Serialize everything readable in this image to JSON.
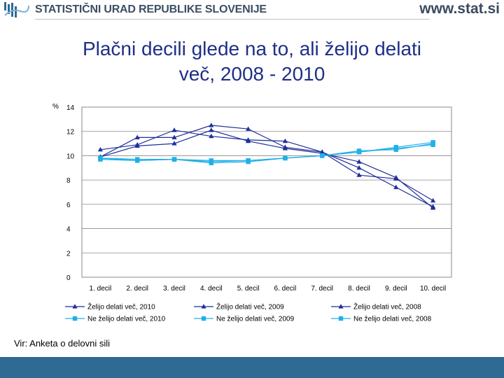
{
  "header": {
    "org_name": "STATISTIČNI URAD REPUBLIKE SLOVENIJE",
    "url": "www.stat.si"
  },
  "slide": {
    "title_line1": "Plačni decili glede na to, ali želijo delati",
    "title_line2": "več, 2008 - 2010",
    "source": "Vir: Anketa o delovni sili"
  },
  "colors": {
    "title": "#1f2f86",
    "footer": "#2f6a93",
    "dark_series": "#1f2f9a",
    "light_series": "#20b0e8"
  },
  "chart_data": {
    "type": "line",
    "ylabel": "%",
    "ylim": [
      0,
      14
    ],
    "yticks": [
      0,
      2,
      4,
      6,
      8,
      10,
      12,
      14
    ],
    "grid": true,
    "categories": [
      "1. decil",
      "2. decil",
      "3. decil",
      "4. decil",
      "5. decil",
      "6. decil",
      "7. decil",
      "8. decil",
      "9. decil",
      "10. decil"
    ],
    "series": [
      {
        "name": "Želijo delati več, 2010",
        "marker": "triangle",
        "color": "#1f2f9a",
        "values": [
          10.5,
          10.9,
          12.1,
          11.6,
          11.3,
          11.2,
          10.3,
          9.0,
          7.4,
          5.8
        ]
      },
      {
        "name": "Želijo delati več, 2009",
        "marker": "triangle",
        "color": "#1f2f9a",
        "values": [
          9.9,
          11.5,
          11.5,
          12.5,
          12.2,
          10.7,
          10.3,
          8.4,
          8.1,
          6.3
        ]
      },
      {
        "name": "Želijo delati več, 2008",
        "marker": "triangle",
        "color": "#1f2f9a",
        "values": [
          9.9,
          10.8,
          11.0,
          12.1,
          11.2,
          10.6,
          10.2,
          9.5,
          8.2,
          5.7
        ]
      },
      {
        "name": "Ne želijo delati več, 2010",
        "marker": "square",
        "color": "#20b0e8",
        "values": [
          9.7,
          9.6,
          9.7,
          9.6,
          9.6,
          9.8,
          10.0,
          10.3,
          10.6,
          10.9
        ]
      },
      {
        "name": "Ne želijo delati več, 2009",
        "marker": "square",
        "color": "#20b0e8",
        "values": [
          9.8,
          9.7,
          9.7,
          9.4,
          9.5,
          9.8,
          10.0,
          10.3,
          10.7,
          11.1
        ]
      },
      {
        "name": "Ne želijo delati več, 2008",
        "marker": "square",
        "color": "#20b0e8",
        "values": [
          9.8,
          9.6,
          9.7,
          9.5,
          9.6,
          9.8,
          10.0,
          10.4,
          10.5,
          11.0
        ]
      }
    ],
    "legend_position": "bottom"
  }
}
